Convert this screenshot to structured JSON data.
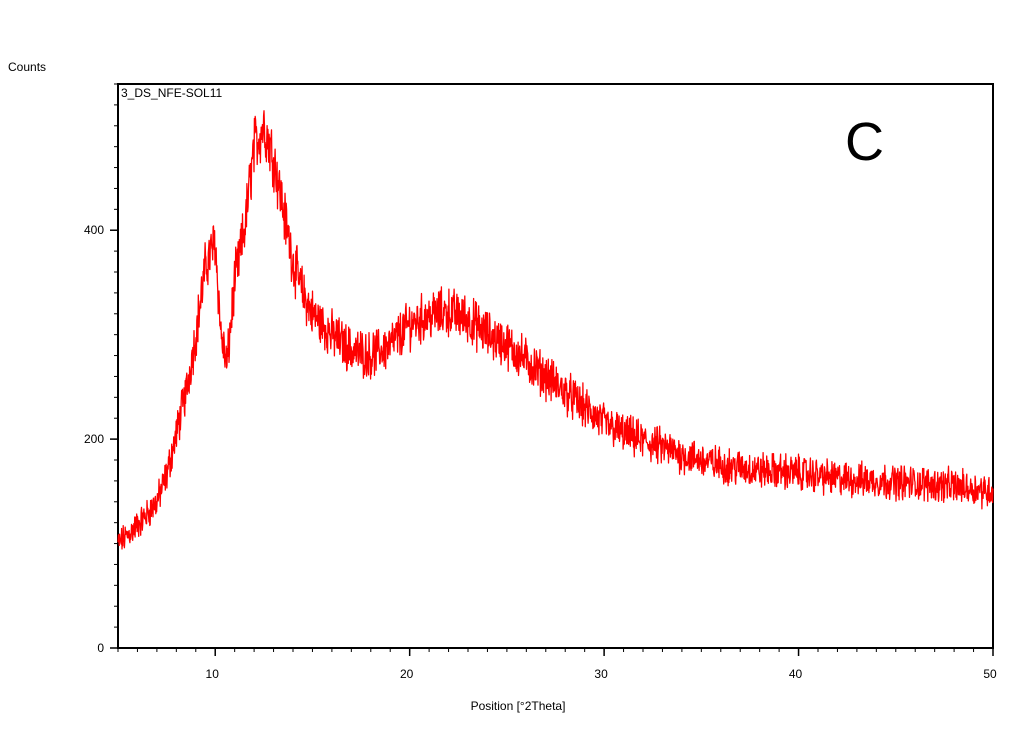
{
  "chart_data": {
    "type": "line",
    "ylabel": "Counts",
    "xlabel": "Position [°2Theta]",
    "sample_label": "3_DS_NFE-SOL11",
    "panel_letter": "C",
    "xlim": [
      5,
      50
    ],
    "ylim": [
      0,
      540
    ],
    "x_ticks": [
      10,
      20,
      30,
      40,
      50
    ],
    "x_tick_labels": [
      "10",
      "20",
      "30",
      "40",
      "50"
    ],
    "y_ticks": [
      0,
      200,
      400
    ],
    "y_tick_labels": [
      "0",
      "200",
      "400"
    ],
    "x_minor_step": 1,
    "y_minor_step": 20,
    "grid": false,
    "series": [
      {
        "color": "#ff0000",
        "x": [
          5.0,
          5.5,
          6.0,
          6.5,
          7.0,
          7.5,
          8.0,
          8.5,
          9.0,
          9.5,
          10.0,
          10.3,
          10.6,
          11.0,
          11.5,
          12.0,
          12.5,
          13.0,
          13.5,
          14.0,
          14.5,
          15.0,
          16.0,
          17.0,
          18.0,
          19.0,
          20.0,
          21.0,
          22.0,
          23.0,
          24.0,
          25.0,
          26.0,
          27.0,
          28.0,
          29.0,
          30.0,
          31.0,
          32.0,
          33.0,
          34.0,
          35.0,
          36.0,
          38.0,
          40.0,
          42.0,
          44.0,
          46.0,
          48.0,
          50.0
        ],
        "y": [
          100,
          108,
          118,
          128,
          140,
          165,
          205,
          245,
          300,
          365,
          390,
          300,
          270,
          350,
          400,
          480,
          500,
          470,
          420,
          370,
          340,
          320,
          300,
          285,
          280,
          290,
          310,
          318,
          322,
          315,
          300,
          290,
          275,
          260,
          245,
          230,
          215,
          205,
          198,
          192,
          185,
          180,
          175,
          170,
          168,
          162,
          160,
          158,
          155,
          150
        ],
        "noise_amplitude": 18
      }
    ]
  }
}
